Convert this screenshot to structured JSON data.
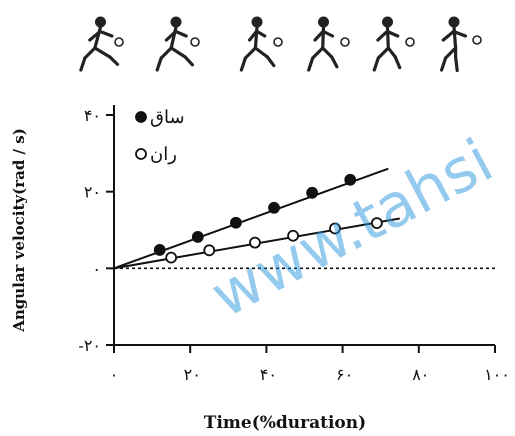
{
  "chart_data": {
    "type": "scatter",
    "xlabel": "Time(%duration)",
    "ylabel": "Angular velocity(rad / s)",
    "xlim": [
      0,
      100
    ],
    "ylim": [
      -20,
      40
    ],
    "x_ticks": [
      {
        "value": 0,
        "label": "٠"
      },
      {
        "value": 20,
        "label": "٢٠"
      },
      {
        "value": 40,
        "label": "۴٠"
      },
      {
        "value": 60,
        "label": "۶٠"
      },
      {
        "value": 80,
        "label": "٨٠"
      },
      {
        "value": 100,
        "label": "١٠٠"
      }
    ],
    "y_ticks": [
      {
        "value": 40,
        "label": "۴٠"
      },
      {
        "value": 20,
        "label": "٢٠"
      },
      {
        "value": 0,
        "label": "٠"
      },
      {
        "value": -20,
        "label": "-٢٠"
      }
    ],
    "reference_line": {
      "y": 0,
      "style": "dotted"
    },
    "legend": {
      "placement": "top-left"
    },
    "series": [
      {
        "name": "ساق",
        "marker": "filled-circle",
        "x": [
          12,
          22,
          32,
          42,
          52,
          62
        ],
        "y": [
          4.8,
          8.2,
          11.9,
          15.8,
          19.7,
          23.1
        ],
        "fit_line": {
          "x": [
            0,
            72
          ],
          "y": [
            0,
            26
          ]
        }
      },
      {
        "name": "ران",
        "marker": "open-circle",
        "x": [
          15,
          25,
          37,
          47,
          58,
          69
        ],
        "y": [
          2.8,
          4.7,
          6.7,
          8.5,
          10.4,
          11.8
        ],
        "fit_line": {
          "x": [
            0,
            75
          ],
          "y": [
            0,
            13
          ]
        }
      }
    ]
  },
  "watermark": "www.tahsi"
}
